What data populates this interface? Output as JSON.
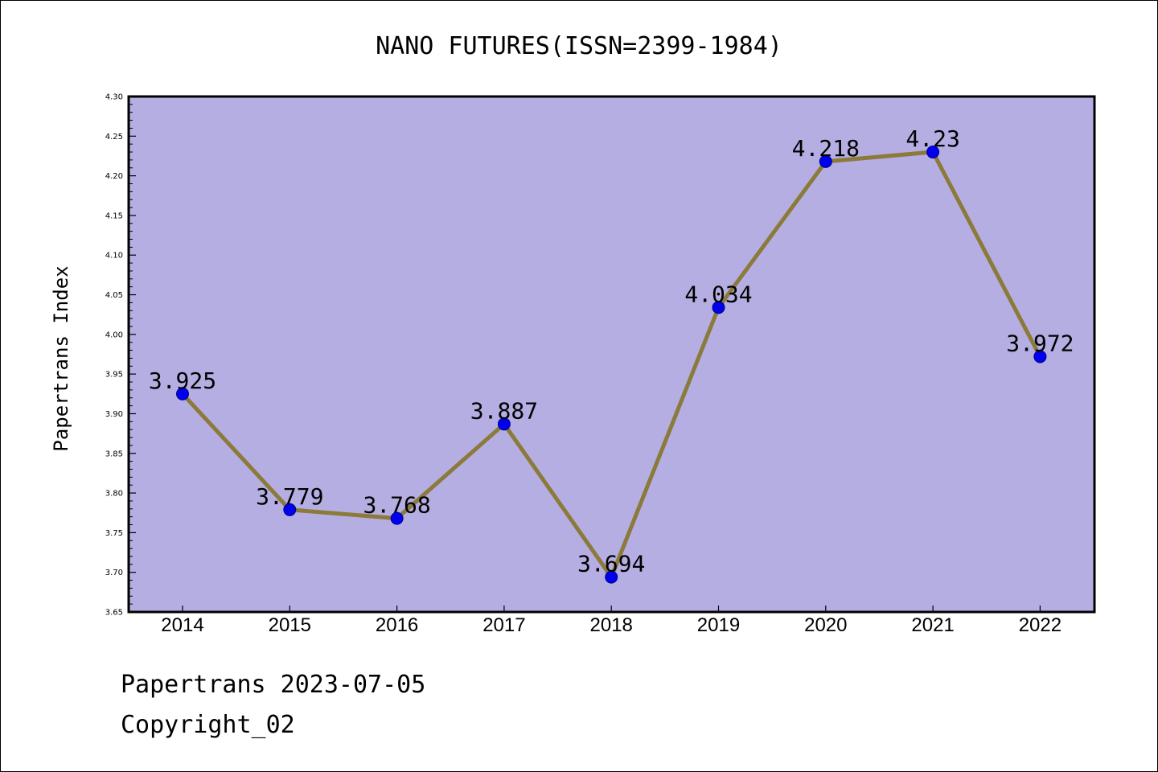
{
  "chart_data": {
    "type": "line",
    "title": "NANO FUTURES(ISSN=2399-1984)",
    "xlabel": "",
    "ylabel": "Papertrans Index",
    "categories": [
      "2014",
      "2015",
      "2016",
      "2017",
      "2018",
      "2019",
      "2020",
      "2021",
      "2022"
    ],
    "series": [
      {
        "values": [
          3.925,
          3.779,
          3.768,
          3.887,
          3.694,
          4.034,
          4.218,
          4.23,
          3.972
        ],
        "data_labels": [
          "3.925",
          "3.779",
          "3.768",
          "3.887",
          "3.694",
          "4.034",
          "4.218",
          "4.23",
          "3.972"
        ]
      }
    ],
    "ylim": [
      3.65,
      4.3
    ],
    "yticks": [
      "3.65",
      "3.70",
      "3.75",
      "3.80",
      "3.85",
      "3.90",
      "3.95",
      "4.00",
      "4.05",
      "4.10",
      "4.15",
      "4.20",
      "4.25",
      "4.30"
    ],
    "grid": false,
    "colors": {
      "plot_background": "#b5aee2",
      "line": "#8b7a3a",
      "marker": "#0000ee"
    }
  },
  "footer": {
    "line1": "Papertrans 2023-07-05",
    "line2": "Copyright_02"
  }
}
